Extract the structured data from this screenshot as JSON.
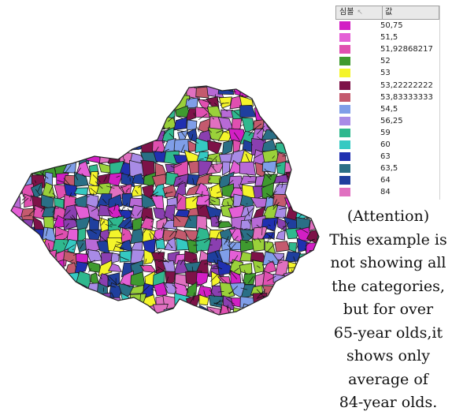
{
  "legend": {
    "header_symbol": "심볼",
    "header_value": "값",
    "entries": [
      {
        "value": "50,75",
        "color": "#d21fc4"
      },
      {
        "value": "51,5",
        "color": "#e45fd6"
      },
      {
        "value": "51,92868217",
        "color": "#e04fb0"
      },
      {
        "value": "52",
        "color": "#3f9a2f"
      },
      {
        "value": "53",
        "color": "#f4f42a"
      },
      {
        "value": "53,22222222",
        "color": "#7d1248"
      },
      {
        "value": "53,83333333",
        "color": "#c45a6e"
      },
      {
        "value": "54,5",
        "color": "#7f9ee8"
      },
      {
        "value": "56,25",
        "color": "#a88be6"
      },
      {
        "value": "59",
        "color": "#2fb88e"
      },
      {
        "value": "60",
        "color": "#35c9c2"
      },
      {
        "value": "63",
        "color": "#2030b0"
      },
      {
        "value": "63,5",
        "color": "#2a6f86"
      },
      {
        "value": "64",
        "color": "#1f3f9e"
      },
      {
        "value": "84",
        "color": "#e070c0"
      }
    ]
  },
  "note": {
    "lines": [
      "(Attention)",
      "This example is",
      "not showing all",
      "the categories,",
      "but for over",
      "65-year olds,it",
      "shows only",
      "average of",
      "84-year olds."
    ]
  },
  "map_palette": [
    "#d21fc4",
    "#e45fd6",
    "#e04fb0",
    "#3f9a2f",
    "#f4f42a",
    "#7d1248",
    "#c45a6e",
    "#7f9ee8",
    "#a88be6",
    "#2fb88e",
    "#35c9c2",
    "#2030b0",
    "#2a6f86",
    "#1f3f9e",
    "#e070c0",
    "#8a3fb0",
    "#9ad13a",
    "#b86ad6"
  ]
}
